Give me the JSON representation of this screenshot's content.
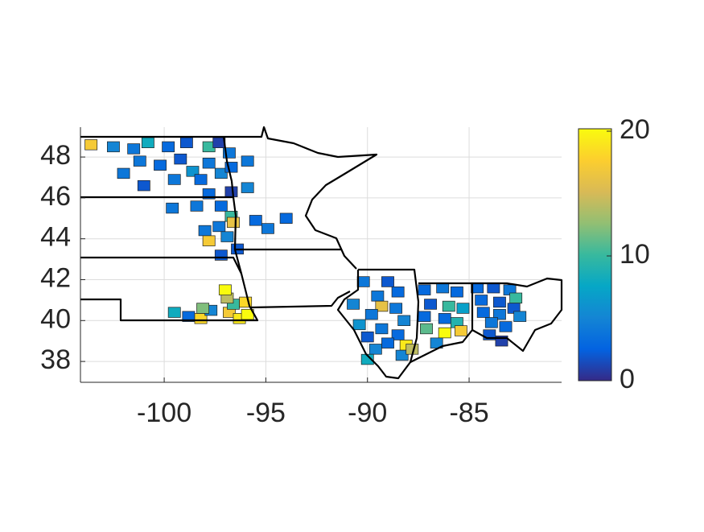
{
  "chart_data": {
    "type": "map",
    "x": [
      -103.6,
      -102.5,
      -101.5,
      -100.8,
      -99.8,
      -98.9,
      -97.8,
      -97.3,
      -96.8,
      -101.2,
      -100.2,
      -99.2,
      -98.6,
      -97.8,
      -97.2,
      -96.7,
      -95.9,
      -95.9,
      -98.2,
      -99.5,
      -102.0,
      -101.0,
      -96.7,
      -97.8,
      -97.2,
      -98.4,
      -96.7,
      -97.3,
      -96.6,
      -98.0,
      -96.9,
      -97.8,
      -96.4,
      -97.2,
      -95.5,
      -94.9,
      -94.0,
      -99.6,
      -99.5,
      -98.8,
      -98.2,
      -97.7,
      -96.8,
      -96.3,
      -95.9,
      -96.6,
      -96.9,
      -96.0,
      -97.0,
      -98.1,
      -90.2,
      -89.0,
      -88.5,
      -89.5,
      -90.7,
      -89.3,
      -88.6,
      -89.8,
      -88.2,
      -90.4,
      -89.3,
      -88.5,
      -90.0,
      -89.0,
      -88.1,
      -89.6,
      -88.3,
      -90.0,
      -87.8,
      -87.2,
      -86.3,
      -85.6,
      -86.9,
      -86.0,
      -85.3,
      -87.2,
      -86.2,
      -85.6,
      -87.1,
      -86.2,
      -85.4,
      -86.6,
      -84.6,
      -83.8,
      -83.0,
      -84.4,
      -83.5,
      -82.7,
      -84.3,
      -83.5,
      -82.8,
      -83.9,
      -83.2,
      -84.0,
      -83.4,
      -82.5
    ],
    "y": [
      48.6,
      48.5,
      48.4,
      48.7,
      48.5,
      48.7,
      48.5,
      48.7,
      48.2,
      47.8,
      47.6,
      47.9,
      47.3,
      47.7,
      47.2,
      47.5,
      47.8,
      46.5,
      46.9,
      46.9,
      47.2,
      46.6,
      46.3,
      46.2,
      45.6,
      45.6,
      45.1,
      44.6,
      44.8,
      44.4,
      44.1,
      43.9,
      43.5,
      43.2,
      44.9,
      44.5,
      45.0,
      45.5,
      40.4,
      40.2,
      40.1,
      40.5,
      40.4,
      40.1,
      40.3,
      40.8,
      41.1,
      40.9,
      41.5,
      40.6,
      41.9,
      41.9,
      41.4,
      41.2,
      40.8,
      40.7,
      40.6,
      40.3,
      40.0,
      39.8,
      39.6,
      39.3,
      39.2,
      38.9,
      38.8,
      38.6,
      38.3,
      38.1,
      38.6,
      41.5,
      41.6,
      41.4,
      40.8,
      40.7,
      40.6,
      40.2,
      40.1,
      39.9,
      39.6,
      39.4,
      39.5,
      38.9,
      41.6,
      41.6,
      41.5,
      41.0,
      40.9,
      41.1,
      40.4,
      40.3,
      40.6,
      39.9,
      39.7,
      39.3,
      39.0,
      40.2
    ],
    "values": [
      17,
      5,
      4,
      8,
      3,
      2,
      10,
      1,
      4,
      4,
      3,
      2,
      6,
      4,
      5,
      3,
      4,
      5,
      3,
      4,
      4,
      2,
      1,
      3,
      3,
      4,
      10,
      4,
      16,
      4,
      5,
      17,
      2,
      2,
      3,
      4,
      3,
      4,
      8,
      3,
      18,
      5,
      17,
      19,
      20,
      10,
      14,
      18,
      20,
      12,
      4,
      2,
      3,
      4,
      5,
      16,
      4,
      4,
      5,
      6,
      4,
      3,
      2,
      3,
      19,
      5,
      5,
      8,
      14,
      3,
      4,
      3,
      2,
      10,
      7,
      3,
      3,
      9,
      11,
      20,
      17,
      5,
      3,
      2,
      4,
      3,
      2,
      10,
      3,
      4,
      2,
      4,
      3,
      2,
      1,
      5
    ],
    "xlim": [
      -104.12,
      -80.45
    ],
    "ylim": [
      36.98,
      49.46
    ],
    "xticks": [
      -100,
      -95,
      -90,
      -85
    ],
    "yticks": [
      38,
      40,
      42,
      44,
      46,
      48
    ],
    "clim": [
      0,
      20
    ],
    "cticks": [
      0,
      10,
      20
    ],
    "colormap": [
      "#352a87",
      "#0363e1",
      "#1485d4",
      "#06a7c6",
      "#38b99e",
      "#92bf73",
      "#d9ba56",
      "#fcce2e",
      "#f9fb0e"
    ],
    "grid": true
  }
}
